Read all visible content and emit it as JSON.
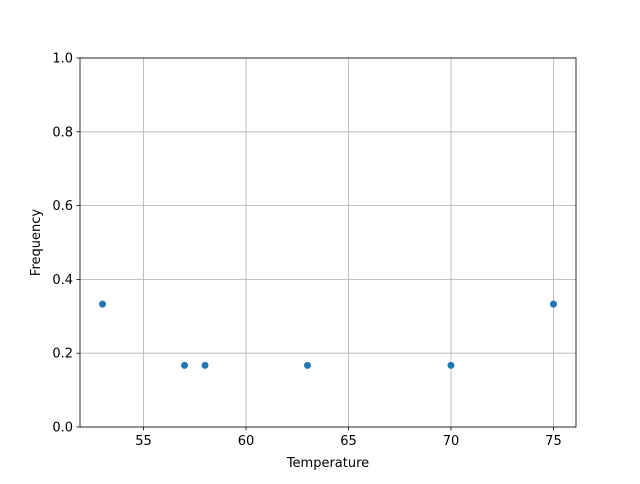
{
  "chart_data": {
    "type": "scatter",
    "title": "",
    "xlabel": "Temperature",
    "ylabel": "Frequency",
    "xlim": [
      51.9,
      76.1
    ],
    "ylim": [
      0,
      1.0
    ],
    "xticks": [
      55,
      60,
      65,
      70,
      75
    ],
    "xtick_labels": [
      "55",
      "60",
      "65",
      "70",
      "75"
    ],
    "yticks": [
      0,
      0.2,
      0.4,
      0.6,
      0.8,
      1.0
    ],
    "ytick_labels": [
      "0.0",
      "0.2",
      "0.4",
      "0.6",
      "0.8",
      "1.0"
    ],
    "grid": true,
    "marker_color": "#1f77b4",
    "points": [
      {
        "x": 53,
        "y": 0.333
      },
      {
        "x": 57,
        "y": 0.167
      },
      {
        "x": 58,
        "y": 0.167
      },
      {
        "x": 63,
        "y": 0.167
      },
      {
        "x": 70,
        "y": 0.167
      },
      {
        "x": 75,
        "y": 0.333
      }
    ]
  }
}
